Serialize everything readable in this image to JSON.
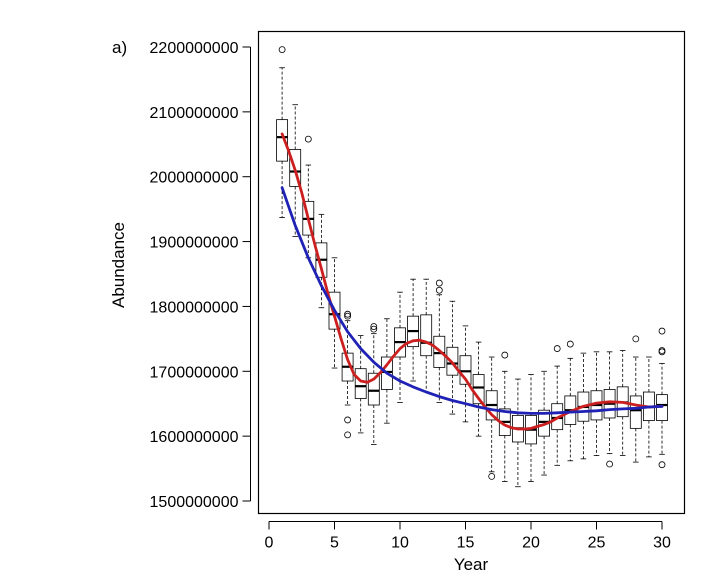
{
  "chart_data": {
    "type": "boxplot",
    "panel_label": "a)",
    "xlabel": "Year",
    "ylabel": "Abundance",
    "xlim": [
      0,
      31
    ],
    "ylim": [
      1500000000,
      2200000000
    ],
    "x_ticks": [
      0,
      5,
      10,
      15,
      20,
      25,
      30
    ],
    "x_tick_labels": [
      "0",
      "5",
      "10",
      "15",
      "20",
      "25",
      "30"
    ],
    "y_ticks": [
      1500000000,
      1600000000,
      1700000000,
      1800000000,
      1900000000,
      2000000000,
      2100000000,
      2200000000
    ],
    "y_tick_labels": [
      "1500000000",
      "1600000000",
      "1700000000",
      "1800000000",
      "1900000000",
      "2000000000",
      "2100000000",
      "2200000000"
    ],
    "grid": false,
    "boxes": [
      {
        "x": 1,
        "whisker_low": 1937000000,
        "q1": 2024000000,
        "median": 2061000000,
        "q3": 2088000000,
        "whisker_high": 2168000000,
        "outliers": [
          2196000000
        ]
      },
      {
        "x": 2,
        "whisker_low": 1908000000,
        "q1": 1985000000,
        "median": 2008000000,
        "q3": 2042000000,
        "whisker_high": 2111000000,
        "outliers": []
      },
      {
        "x": 3,
        "whisker_low": 1875000000,
        "q1": 1910000000,
        "median": 1935000000,
        "q3": 1962000000,
        "whisker_high": 2018000000,
        "outliers": [
          2058000000
        ]
      },
      {
        "x": 4,
        "whisker_low": 1798000000,
        "q1": 1845000000,
        "median": 1872000000,
        "q3": 1898000000,
        "whisker_high": 1942000000,
        "outliers": []
      },
      {
        "x": 5,
        "whisker_low": 1705000000,
        "q1": 1765000000,
        "median": 1788000000,
        "q3": 1822000000,
        "whisker_high": 1875000000,
        "outliers": []
      },
      {
        "x": 6,
        "whisker_low": 1648000000,
        "q1": 1685000000,
        "median": 1707000000,
        "q3": 1728000000,
        "whisker_high": 1778000000,
        "outliers": [
          1788000000,
          1785000000,
          1625000000,
          1602000000
        ]
      },
      {
        "x": 7,
        "whisker_low": 1605000000,
        "q1": 1658000000,
        "median": 1677000000,
        "q3": 1704000000,
        "whisker_high": 1755000000,
        "outliers": []
      },
      {
        "x": 8,
        "whisker_low": 1587000000,
        "q1": 1648000000,
        "median": 1670000000,
        "q3": 1697000000,
        "whisker_high": 1758000000,
        "outliers": [
          1769000000,
          1765000000
        ]
      },
      {
        "x": 9,
        "whisker_low": 1620000000,
        "q1": 1672000000,
        "median": 1699000000,
        "q3": 1722000000,
        "whisker_high": 1781000000,
        "outliers": []
      },
      {
        "x": 10,
        "whisker_low": 1652000000,
        "q1": 1722000000,
        "median": 1745000000,
        "q3": 1767000000,
        "whisker_high": 1822000000,
        "outliers": []
      },
      {
        "x": 11,
        "whisker_low": 1685000000,
        "q1": 1738000000,
        "median": 1762000000,
        "q3": 1785000000,
        "whisker_high": 1842000000,
        "outliers": []
      },
      {
        "x": 12,
        "whisker_low": 1668000000,
        "q1": 1724000000,
        "median": 1744000000,
        "q3": 1787000000,
        "whisker_high": 1842000000,
        "outliers": []
      },
      {
        "x": 13,
        "whisker_low": 1652000000,
        "q1": 1706000000,
        "median": 1728000000,
        "q3": 1754000000,
        "whisker_high": 1818000000,
        "outliers": [
          1836000000,
          1825000000
        ]
      },
      {
        "x": 14,
        "whisker_low": 1634000000,
        "q1": 1694000000,
        "median": 1712000000,
        "q3": 1737000000,
        "whisker_high": 1808000000,
        "outliers": []
      },
      {
        "x": 15,
        "whisker_low": 1622000000,
        "q1": 1680000000,
        "median": 1700000000,
        "q3": 1724000000,
        "whisker_high": 1770000000,
        "outliers": []
      },
      {
        "x": 16,
        "whisker_low": 1600000000,
        "q1": 1650000000,
        "median": 1675000000,
        "q3": 1695000000,
        "whisker_high": 1745000000,
        "outliers": []
      },
      {
        "x": 17,
        "whisker_low": 1545000000,
        "q1": 1625000000,
        "median": 1648000000,
        "q3": 1670000000,
        "whisker_high": 1722000000,
        "outliers": [
          1538000000
        ]
      },
      {
        "x": 18,
        "whisker_low": 1530000000,
        "q1": 1601000000,
        "median": 1622000000,
        "q3": 1642000000,
        "whisker_high": 1700000000,
        "outliers": [
          1725000000
        ]
      },
      {
        "x": 19,
        "whisker_low": 1522000000,
        "q1": 1591000000,
        "median": 1612000000,
        "q3": 1632000000,
        "whisker_high": 1688000000,
        "outliers": []
      },
      {
        "x": 20,
        "whisker_low": 1530000000,
        "q1": 1588000000,
        "median": 1610000000,
        "q3": 1632000000,
        "whisker_high": 1695000000,
        "outliers": []
      },
      {
        "x": 21,
        "whisker_low": 1540000000,
        "q1": 1600000000,
        "median": 1622000000,
        "q3": 1640000000,
        "whisker_high": 1700000000,
        "outliers": []
      },
      {
        "x": 22,
        "whisker_low": 1555000000,
        "q1": 1610000000,
        "median": 1628000000,
        "q3": 1650000000,
        "whisker_high": 1708000000,
        "outliers": [
          1735000000
        ]
      },
      {
        "x": 23,
        "whisker_low": 1562000000,
        "q1": 1618000000,
        "median": 1640000000,
        "q3": 1662000000,
        "whisker_high": 1720000000,
        "outliers": [
          1742000000
        ]
      },
      {
        "x": 24,
        "whisker_low": 1565000000,
        "q1": 1623000000,
        "median": 1645000000,
        "q3": 1668000000,
        "whisker_high": 1728000000,
        "outliers": []
      },
      {
        "x": 25,
        "whisker_low": 1570000000,
        "q1": 1625000000,
        "median": 1648000000,
        "q3": 1670000000,
        "whisker_high": 1730000000,
        "outliers": []
      },
      {
        "x": 26,
        "whisker_low": 1573000000,
        "q1": 1628000000,
        "median": 1650000000,
        "q3": 1672000000,
        "whisker_high": 1730000000,
        "outliers": [
          1557000000
        ]
      },
      {
        "x": 27,
        "whisker_low": 1570000000,
        "q1": 1630000000,
        "median": 1652000000,
        "q3": 1676000000,
        "whisker_high": 1732000000,
        "outliers": []
      },
      {
        "x": 28,
        "whisker_low": 1560000000,
        "q1": 1612000000,
        "median": 1640000000,
        "q3": 1662000000,
        "whisker_high": 1722000000,
        "outliers": [
          1750000000
        ]
      },
      {
        "x": 29,
        "whisker_low": 1568000000,
        "q1": 1624000000,
        "median": 1645000000,
        "q3": 1668000000,
        "whisker_high": 1722000000,
        "outliers": []
      },
      {
        "x": 30,
        "whisker_low": 1572000000,
        "q1": 1624000000,
        "median": 1648000000,
        "q3": 1664000000,
        "whisker_high": 1712000000,
        "outliers": [
          1762000000,
          1732000000,
          1730000000,
          1556000000
        ]
      }
    ],
    "series": [
      {
        "color": "#cc1f1f",
        "type": "line",
        "x": [
          1,
          1.5,
          2,
          2.5,
          3,
          3.5,
          4,
          4.5,
          5,
          5.5,
          6,
          6.5,
          7,
          7.5,
          8,
          8.5,
          9,
          9.5,
          10,
          10.5,
          11,
          11.5,
          12,
          12.5,
          13,
          13.5,
          14,
          14.5,
          15,
          15.5,
          16,
          16.5,
          17,
          17.5,
          18,
          18.5,
          19,
          19.5,
          20,
          20.5,
          21,
          21.5,
          22,
          23,
          24,
          25,
          26,
          27,
          28,
          29,
          30
        ],
        "y": [
          2066000000,
          2040000000,
          2010000000,
          1975000000,
          1935000000,
          1895000000,
          1858000000,
          1820000000,
          1785000000,
          1750000000,
          1718000000,
          1695000000,
          1685000000,
          1683000000,
          1688000000,
          1698000000,
          1710000000,
          1723000000,
          1735000000,
          1743000000,
          1747000000,
          1748000000,
          1745000000,
          1740000000,
          1732000000,
          1723000000,
          1713000000,
          1700000000,
          1688000000,
          1672000000,
          1658000000,
          1645000000,
          1633000000,
          1624000000,
          1617000000,
          1613000000,
          1611000000,
          1611000000,
          1612000000,
          1615000000,
          1618000000,
          1622000000,
          1628000000,
          1638000000,
          1646000000,
          1651000000,
          1653000000,
          1652000000,
          1648000000,
          1645000000,
          1646000000
        ]
      },
      {
        "color": "#1f22b5",
        "type": "line",
        "x": [
          1,
          2,
          3,
          4,
          5,
          6,
          7,
          8,
          9,
          10,
          11,
          12,
          13,
          14,
          15,
          16,
          17,
          18,
          19,
          20,
          21,
          22,
          23,
          24,
          25,
          26,
          27,
          28,
          29,
          30
        ],
        "y": [
          1983000000,
          1925000000,
          1875000000,
          1832000000,
          1794000000,
          1761000000,
          1735000000,
          1714000000,
          1697000000,
          1685000000,
          1676000000,
          1668000000,
          1661000000,
          1655000000,
          1650000000,
          1645000000,
          1641000000,
          1638000000,
          1636000000,
          1635000000,
          1635000000,
          1636000000,
          1637000000,
          1638000000,
          1639000000,
          1641000000,
          1642000000,
          1643000000,
          1645000000,
          1646000000
        ]
      }
    ]
  }
}
